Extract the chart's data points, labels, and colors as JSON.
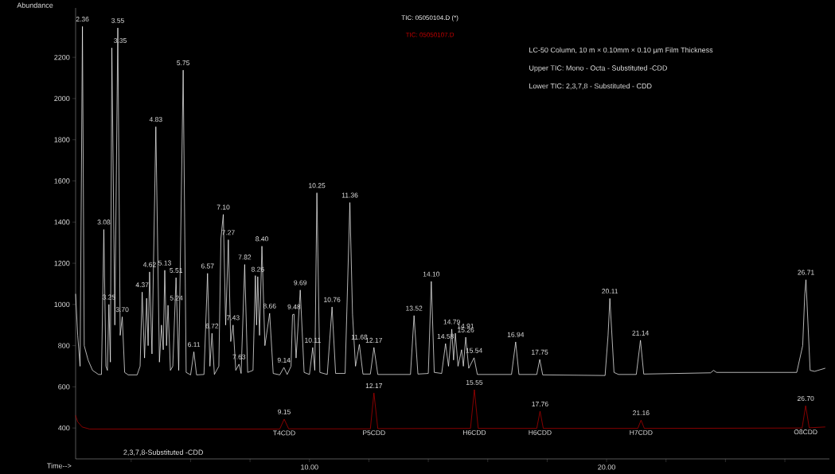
{
  "chart_data": {
    "type": "line",
    "xlabel": "Time-->",
    "ylabel": "Abundance",
    "marker": "none",
    "xlim": [
      2.13,
      27.5
    ],
    "ylim": [
      250,
      2440
    ],
    "xticks": [
      {
        "value": 4,
        "label": null
      },
      {
        "value": 6,
        "label": null
      },
      {
        "value": 8,
        "label": null
      },
      {
        "value": 10,
        "label": "10.00"
      },
      {
        "value": 12,
        "label": null
      },
      {
        "value": 14,
        "label": null
      },
      {
        "value": 16,
        "label": null
      },
      {
        "value": 18,
        "label": null
      },
      {
        "value": 20,
        "label": "20.00"
      },
      {
        "value": 22,
        "label": null
      },
      {
        "value": 24,
        "label": null
      },
      {
        "value": 26,
        "label": null
      }
    ],
    "yticks": [
      400,
      600,
      800,
      1000,
      1200,
      1400,
      1600,
      1800,
      2000,
      2200
    ],
    "series": [
      {
        "name": "TIC: 05050107.D",
        "color": "#c00000",
        "x": [
          2.13,
          2.2,
          2.35,
          2.6,
          9.0,
          9.15,
          9.3,
          12.05,
          12.17,
          12.3,
          15.42,
          15.55,
          15.68,
          17.65,
          17.76,
          17.87,
          21.05,
          21.16,
          21.27,
          26.58,
          26.7,
          26.82,
          27.35
        ],
        "values": [
          460,
          430,
          405,
          395,
          395,
          443,
          396,
          396,
          570,
          397,
          398,
          586,
          398,
          398,
          481,
          398,
          398,
          438,
          398,
          400,
          508,
          401,
          405
        ]
      },
      {
        "name": "TIC: 05050104.D (*)",
        "color": "#ffffff",
        "x": [
          2.13,
          2.2,
          2.28,
          2.36,
          2.42,
          2.55,
          2.7,
          2.9,
          3.0,
          3.08,
          3.15,
          3.2,
          3.25,
          3.3,
          3.35,
          3.45,
          3.55,
          3.63,
          3.7,
          3.78,
          3.9,
          4.2,
          4.3,
          4.37,
          4.45,
          4.52,
          4.57,
          4.62,
          4.7,
          4.83,
          4.95,
          5.02,
          5.08,
          5.13,
          5.19,
          5.24,
          5.32,
          5.4,
          5.51,
          5.6,
          5.75,
          5.85,
          6.0,
          6.11,
          6.2,
          6.45,
          6.57,
          6.65,
          6.72,
          6.8,
          6.95,
          7.02,
          7.1,
          7.18,
          7.27,
          7.35,
          7.43,
          7.52,
          7.63,
          7.7,
          7.82,
          7.92,
          8.1,
          8.18,
          8.22,
          8.26,
          8.32,
          8.4,
          8.5,
          8.66,
          8.78,
          9.0,
          9.14,
          9.25,
          9.38,
          9.43,
          9.48,
          9.55,
          9.69,
          9.82,
          10.0,
          10.11,
          10.18,
          10.25,
          10.35,
          10.6,
          10.76,
          10.88,
          11.2,
          11.36,
          11.45,
          11.55,
          11.68,
          11.8,
          12.05,
          12.17,
          12.3,
          13.4,
          13.52,
          13.65,
          14.0,
          14.1,
          14.2,
          14.45,
          14.58,
          14.68,
          14.79,
          14.85,
          14.91,
          15.0,
          15.12,
          15.18,
          15.26,
          15.36,
          15.54,
          15.65,
          16.8,
          16.94,
          17.05,
          17.65,
          17.75,
          17.85,
          19.95,
          20.05,
          20.11,
          20.25,
          20.4,
          21.0,
          21.14,
          21.25,
          23.5,
          23.6,
          23.7,
          26.4,
          26.6,
          26.67,
          26.71,
          26.85,
          27.0,
          27.35
        ],
        "values": [
          1050,
          850,
          700,
          2350,
          800,
          730,
          680,
          660,
          660,
          1364,
          700,
          680,
          1000,
          720,
          2246,
          900,
          2343,
          850,
          940,
          670,
          658,
          658,
          700,
          1060,
          740,
          1030,
          800,
          1158,
          760,
          1863,
          720,
          900,
          780,
          1166,
          800,
          996,
          680,
          700,
          1130,
          680,
          2138,
          670,
          658,
          770,
          658,
          660,
          1151,
          700,
          860,
          660,
          700,
          1320,
          1437,
          900,
          1314,
          820,
          900,
          680,
          710,
          665,
          1194,
          670,
          680,
          1140,
          900,
          1135,
          850,
          1283,
          800,
          957,
          665,
          658,
          694,
          660,
          700,
          950,
          953,
          740,
          1070,
          670,
          660,
          791,
          680,
          1542,
          670,
          660,
          988,
          665,
          665,
          1495,
          950,
          700,
          806,
          662,
          662,
          791,
          660,
          660,
          946,
          662,
          665,
          1112,
          670,
          665,
          810,
          700,
          880,
          730,
          860,
          700,
          780,
          700,
          841,
          690,
          741,
          660,
          660,
          818,
          660,
          660,
          733,
          658,
          655,
          850,
          1029,
          670,
          660,
          660,
          826,
          662,
          668,
          680,
          670,
          670,
          800,
          1050,
          1120,
          680,
          675,
          690
        ]
      }
    ],
    "annotations": [
      "LC-50 Column, 10 m × 0.10mm × 0.10 µm Film Thickness",
      "Upper TIC: Mono - Octa - Substituted -CDD",
      "Lower TIC: 2,3,7,8 - Substituted - CDD",
      "2,3,7,8-Substituted -CDD",
      {
        "text": "2.36",
        "x": 2.36,
        "y": 2350
      },
      {
        "text": "3.08",
        "x": 3.08,
        "y": 1364
      },
      {
        "text": "3.25",
        "x": 3.25,
        "y": 1000
      },
      {
        "text": "3.35",
        "x": 3.35,
        "y": 2246
      },
      {
        "text": "3.55",
        "x": 3.55,
        "y": 2343
      },
      {
        "text": "3.70",
        "x": 3.7,
        "y": 940
      },
      {
        "text": "4.37",
        "x": 4.37,
        "y": 1060
      },
      {
        "text": "4.62",
        "x": 4.62,
        "y": 1158
      },
      {
        "text": "4.83",
        "x": 4.83,
        "y": 1863
      },
      {
        "text": "5.13",
        "x": 5.13,
        "y": 1166
      },
      {
        "text": "5.24",
        "x": 5.24,
        "y": 996
      },
      {
        "text": "5.51",
        "x": 5.51,
        "y": 1130
      },
      {
        "text": "5.75",
        "x": 5.75,
        "y": 2138
      },
      {
        "text": "6.11",
        "x": 6.11,
        "y": 770
      },
      {
        "text": "6.57",
        "x": 6.57,
        "y": 1151
      },
      {
        "text": "6.72",
        "x": 6.72,
        "y": 860
      },
      {
        "text": "7.10",
        "x": 7.1,
        "y": 1437
      },
      {
        "text": "7.27",
        "x": 7.27,
        "y": 1314
      },
      {
        "text": "7.43",
        "x": 7.43,
        "y": 900
      },
      {
        "text": "7.63",
        "x": 7.63,
        "y": 710
      },
      {
        "text": "7.82",
        "x": 7.82,
        "y": 1194
      },
      {
        "text": "8.26",
        "x": 8.26,
        "y": 1135
      },
      {
        "text": "8.40",
        "x": 8.4,
        "y": 1283
      },
      {
        "text": "8.66",
        "x": 8.66,
        "y": 957
      },
      {
        "text": "9.14",
        "x": 9.14,
        "y": 694
      },
      {
        "text": "9.48",
        "x": 9.48,
        "y": 953
      },
      {
        "text": "9.69",
        "x": 9.69,
        "y": 1070
      },
      {
        "text": "10.11",
        "x": 10.11,
        "y": 791
      },
      {
        "text": "10.25",
        "x": 10.25,
        "y": 1542
      },
      {
        "text": "10.76",
        "x": 10.76,
        "y": 988
      },
      {
        "text": "11.36",
        "x": 11.36,
        "y": 1495
      },
      {
        "text": "11.68",
        "x": 11.68,
        "y": 806
      },
      {
        "text": "12.17",
        "x": 12.17,
        "y": 791
      },
      {
        "text": "13.52",
        "x": 13.52,
        "y": 946
      },
      {
        "text": "14.10",
        "x": 14.1,
        "y": 1112
      },
      {
        "text": "14.58",
        "x": 14.58,
        "y": 810
      },
      {
        "text": "14.79",
        "x": 14.79,
        "y": 880
      },
      {
        "text": "14.91",
        "x": 14.91,
        "y": 860
      },
      {
        "text": "15.26",
        "x": 15.26,
        "y": 841
      },
      {
        "text": "15.54",
        "x": 15.54,
        "y": 741
      },
      {
        "text": "16.94",
        "x": 16.94,
        "y": 818
      },
      {
        "text": "17.75",
        "x": 17.75,
        "y": 733
      },
      {
        "text": "20.11",
        "x": 20.11,
        "y": 1029
      },
      {
        "text": "21.14",
        "x": 21.14,
        "y": 826
      },
      {
        "text": "26.71",
        "x": 26.71,
        "y": 1120
      },
      {
        "text": "9.15",
        "x": 9.15,
        "y": 443
      },
      {
        "text": "12.17",
        "x": 12.17,
        "y": 570
      },
      {
        "text": "15.55",
        "x": 15.55,
        "y": 586
      },
      {
        "text": "17.76",
        "x": 17.76,
        "y": 481
      },
      {
        "text": "21.16",
        "x": 21.16,
        "y": 438
      },
      {
        "text": "26.70",
        "x": 26.7,
        "y": 508
      },
      {
        "text": "T4CDD",
        "x": 9.15,
        "y": 396
      },
      {
        "text": "P5CDD",
        "x": 12.17,
        "y": 397
      },
      {
        "text": "H6CDD",
        "x": 15.55,
        "y": 398
      },
      {
        "text": "H6CDD",
        "x": 17.76,
        "y": 398
      },
      {
        "text": "H7CDD",
        "x": 21.16,
        "y": 398
      },
      {
        "text": "O8CDD",
        "x": 26.7,
        "y": 401
      }
    ]
  }
}
